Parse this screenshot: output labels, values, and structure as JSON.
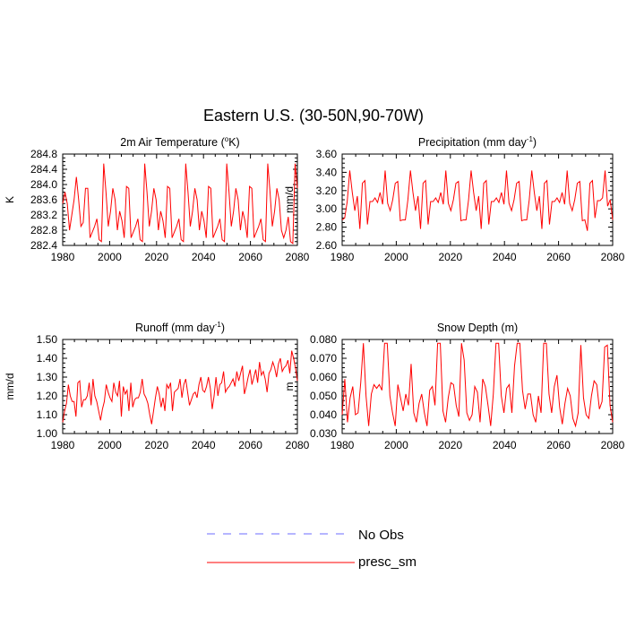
{
  "figure": {
    "main_title": "Eastern U.S. (30-50N,90-70W)"
  },
  "legend": {
    "items": [
      {
        "label": "No Obs",
        "color": "#6b6bff",
        "dash": true
      },
      {
        "label": "presc_sm",
        "color": "#ff0000",
        "dash": false
      }
    ]
  },
  "chart_data": [
    {
      "type": "line",
      "title_prefix": "2m Air Temperature (",
      "title_sup": "o",
      "title_suffix": "K)",
      "ylabel": "K",
      "xlim": [
        1980,
        2080
      ],
      "ylim": [
        282.4,
        284.8
      ],
      "xticks": [
        "1980",
        "2000",
        "2020",
        "2040",
        "2060",
        "2080"
      ],
      "yticks": [
        "282.4",
        "282.8",
        "283.2",
        "283.6",
        "284.0",
        "284.4",
        "284.8"
      ],
      "series": [
        {
          "name": "presc_sm",
          "color": "#ff0000",
          "x_start": 1980,
          "x_step": 1,
          "values": [
            283.5,
            283.8,
            283.5,
            282.8,
            283.2,
            283.6,
            284.2,
            283.6,
            282.9,
            283.0,
            283.9,
            283.9,
            282.6,
            282.75,
            282.9,
            283.1,
            282.55,
            282.5,
            284.55,
            283.8,
            282.9,
            283.3,
            283.9,
            283.6,
            282.8,
            283.3,
            283.05,
            282.6,
            283.95,
            283.9,
            282.6,
            282.75,
            282.9,
            283.1,
            282.55,
            282.5,
            284.55,
            283.8,
            282.9,
            283.3,
            283.9,
            283.6,
            282.8,
            283.3,
            283.05,
            282.6,
            283.95,
            283.9,
            282.6,
            282.75,
            282.9,
            283.1,
            282.55,
            282.5,
            284.55,
            283.8,
            282.9,
            283.3,
            283.9,
            283.6,
            282.8,
            283.3,
            283.05,
            282.6,
            283.95,
            283.9,
            282.6,
            282.75,
            282.9,
            283.1,
            282.55,
            282.5,
            284.55,
            283.8,
            282.9,
            283.3,
            283.9,
            283.6,
            282.8,
            283.3,
            283.05,
            282.6,
            283.95,
            283.9,
            282.6,
            282.75,
            282.9,
            283.1,
            282.55,
            282.5,
            284.55,
            283.8,
            282.9,
            283.3,
            283.9,
            283.6,
            282.8,
            282.6,
            282.8,
            283.15,
            282.5,
            282.45,
            284.55,
            283.9
          ]
        }
      ]
    },
    {
      "type": "line",
      "title_prefix": "Precipitation (mm day",
      "title_sup": "-1",
      "title_suffix": ")",
      "ylabel": "mm/d",
      "xlim": [
        1980,
        2080
      ],
      "ylim": [
        2.6,
        3.6
      ],
      "xticks": [
        "1980",
        "2000",
        "2020",
        "2040",
        "2060",
        "2080"
      ],
      "yticks": [
        "2.60",
        "2.80",
        "3.00",
        "3.20",
        "3.40",
        "3.60"
      ],
      "series": [
        {
          "name": "presc_sm",
          "color": "#ff0000",
          "x_start": 1980,
          "x_step": 1,
          "values": [
            2.88,
            2.9,
            3.08,
            3.42,
            3.18,
            2.98,
            3.14,
            2.78,
            3.28,
            3.31,
            2.83,
            3.08,
            3.08,
            3.12,
            3.07,
            3.18,
            3.05,
            3.42,
            3.06,
            2.98,
            3.1,
            3.28,
            3.3,
            2.87,
            2.88,
            2.88,
            3.1,
            3.42,
            3.18,
            2.98,
            3.14,
            2.78,
            3.28,
            3.31,
            2.83,
            3.08,
            3.08,
            3.12,
            3.07,
            3.18,
            3.05,
            3.42,
            3.06,
            2.98,
            3.1,
            3.28,
            3.3,
            2.87,
            2.88,
            2.88,
            3.1,
            3.42,
            3.18,
            2.98,
            3.14,
            2.78,
            3.28,
            3.31,
            2.83,
            3.08,
            3.08,
            3.12,
            3.07,
            3.18,
            3.05,
            3.42,
            3.06,
            2.98,
            3.1,
            3.28,
            3.3,
            2.87,
            2.88,
            2.88,
            3.1,
            3.42,
            3.18,
            2.98,
            3.14,
            2.78,
            3.28,
            3.31,
            2.83,
            3.08,
            3.08,
            3.12,
            3.07,
            3.18,
            3.05,
            3.42,
            3.06,
            2.98,
            3.1,
            3.28,
            3.3,
            2.87,
            2.88,
            2.76,
            3.28,
            3.31,
            2.9,
            3.09,
            3.09,
            3.12,
            3.42,
            3.03,
            3.1,
            2.88
          ]
        }
      ]
    },
    {
      "type": "line",
      "title_prefix": "Runoff (mm day",
      "title_sup": "-1",
      "title_suffix": ")",
      "ylabel": "mm/d",
      "xlim": [
        1980,
        2080
      ],
      "ylim": [
        1.0,
        1.5
      ],
      "xticks": [
        "1980",
        "2000",
        "2020",
        "2040",
        "2060",
        "2080"
      ],
      "yticks": [
        "1.00",
        "1.10",
        "1.20",
        "1.30",
        "1.40",
        "1.50"
      ],
      "series": [
        {
          "name": "presc_sm",
          "color": "#ff0000",
          "x_start": 1980,
          "x_step": 1,
          "values": [
            1.06,
            1.12,
            1.16,
            1.26,
            1.2,
            1.17,
            1.17,
            1.09,
            1.27,
            1.28,
            1.14,
            1.18,
            1.18,
            1.2,
            1.27,
            1.15,
            1.29,
            1.2,
            1.17,
            1.12,
            1.07,
            1.13,
            1.17,
            1.26,
            1.22,
            1.19,
            1.17,
            1.27,
            1.22,
            1.2,
            1.28,
            1.09,
            1.25,
            1.21,
            1.23,
            1.12,
            1.27,
            1.14,
            1.18,
            1.19,
            1.19,
            1.22,
            1.29,
            1.21,
            1.19,
            1.16,
            1.1,
            1.05,
            1.12,
            1.19,
            1.25,
            1.21,
            1.14,
            1.19,
            1.12,
            1.26,
            1.24,
            1.27,
            1.12,
            1.22,
            1.23,
            1.24,
            1.29,
            1.19,
            1.26,
            1.29,
            1.22,
            1.15,
            1.18,
            1.21,
            1.22,
            1.19,
            1.26,
            1.3,
            1.23,
            1.22,
            1.25,
            1.3,
            1.24,
            1.13,
            1.2,
            1.3,
            1.2,
            1.26,
            1.27,
            1.33,
            1.22,
            1.24,
            1.25,
            1.27,
            1.29,
            1.25,
            1.33,
            1.28,
            1.32,
            1.36,
            1.21,
            1.25,
            1.3,
            1.34,
            1.26,
            1.3,
            1.34,
            1.27,
            1.38,
            1.31,
            1.33,
            1.29,
            1.22,
            1.32,
            1.34,
            1.38,
            1.35,
            1.3,
            1.37,
            1.4,
            1.33,
            1.35,
            1.36,
            1.39,
            1.32,
            1.44,
            1.4,
            1.35,
            1.28
          ]
        }
      ]
    },
    {
      "type": "line",
      "title_prefix": "Snow Depth (m)",
      "title_sup": "",
      "title_suffix": "",
      "ylabel": "m",
      "xlim": [
        1980,
        2080
      ],
      "ylim": [
        0.03,
        0.08
      ],
      "xticks": [
        "1980",
        "2000",
        "2020",
        "2040",
        "2060",
        "2080"
      ],
      "yticks": [
        "0.030",
        "0.040",
        "0.050",
        "0.060",
        "0.070",
        "0.080"
      ],
      "series": [
        {
          "name": "presc_sm",
          "color": "#ff0000",
          "x_start": 1980,
          "x_step": 1,
          "values": [
            0.04,
            0.059,
            0.036,
            0.049,
            0.055,
            0.04,
            0.041,
            0.057,
            0.078,
            0.05,
            0.034,
            0.051,
            0.056,
            0.054,
            0.056,
            0.053,
            0.078,
            0.078,
            0.05,
            0.041,
            0.034,
            0.056,
            0.049,
            0.042,
            0.051,
            0.045,
            0.067,
            0.041,
            0.036,
            0.046,
            0.051,
            0.041,
            0.034,
            0.053,
            0.055,
            0.045,
            0.078,
            0.078,
            0.042,
            0.036,
            0.049,
            0.057,
            0.056,
            0.045,
            0.039,
            0.078,
            0.069,
            0.041,
            0.037,
            0.04,
            0.055,
            0.052,
            0.036,
            0.059,
            0.055,
            0.045,
            0.034,
            0.051,
            0.078,
            0.078,
            0.05,
            0.041,
            0.054,
            0.056,
            0.041,
            0.066,
            0.078,
            0.078,
            0.053,
            0.043,
            0.051,
            0.051,
            0.04,
            0.036,
            0.05,
            0.041,
            0.078,
            0.078,
            0.051,
            0.041,
            0.055,
            0.061,
            0.044,
            0.035,
            0.046,
            0.054,
            0.05,
            0.038,
            0.034,
            0.041,
            0.077,
            0.049,
            0.04,
            0.038,
            0.05,
            0.058,
            0.056,
            0.043,
            0.047,
            0.076,
            0.077,
            0.045,
            0.036
          ]
        }
      ]
    }
  ]
}
